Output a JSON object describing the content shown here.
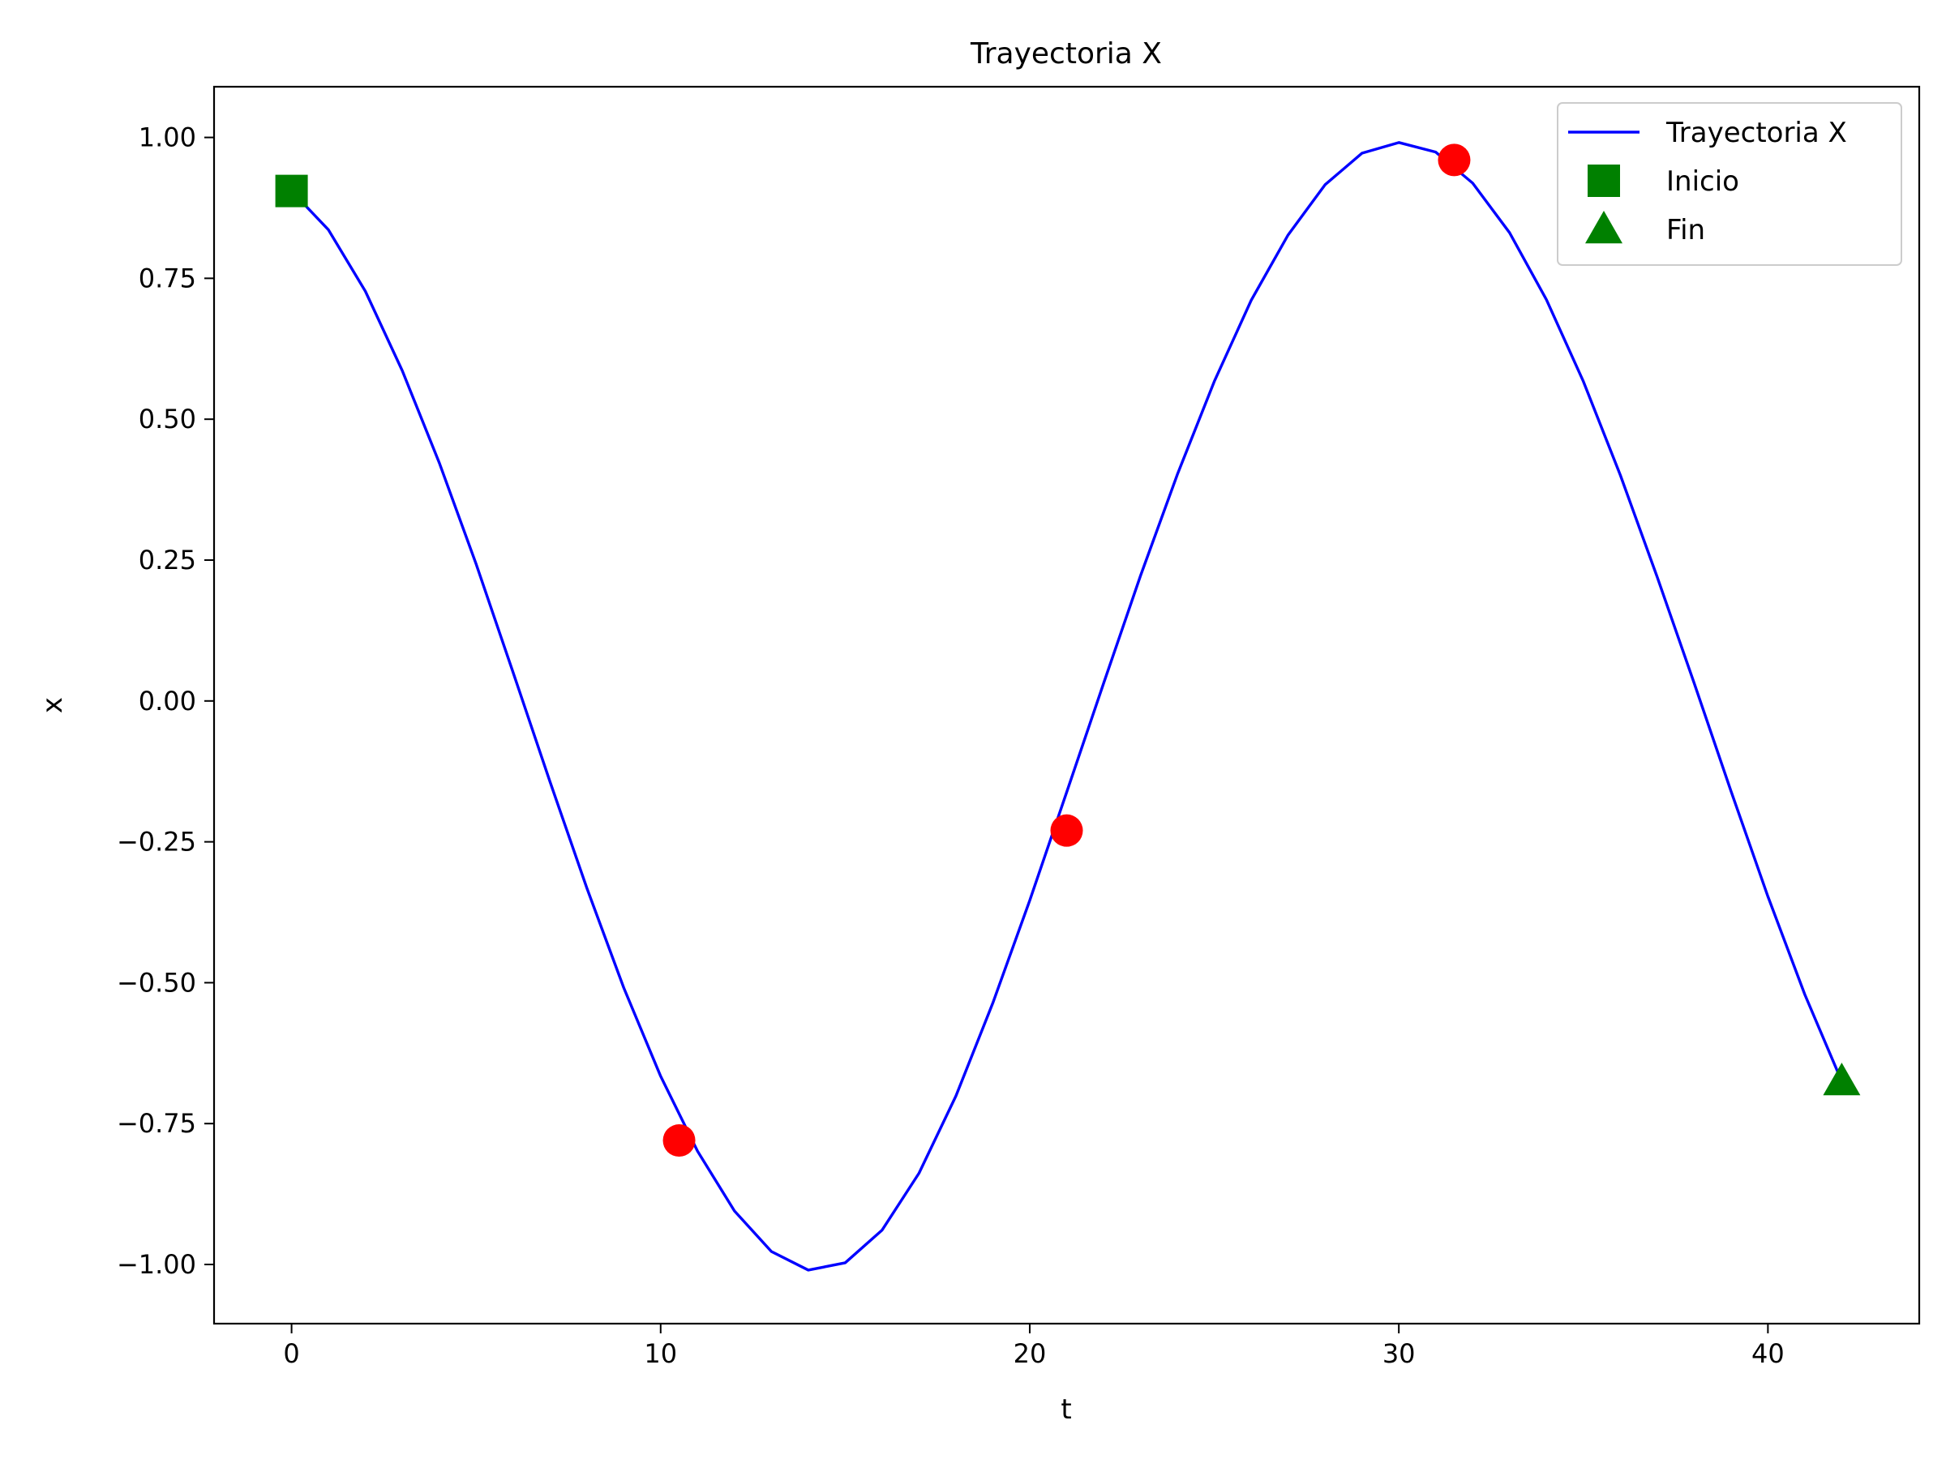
{
  "chart_data": {
    "type": "line",
    "title": "Trayectoria X",
    "xlabel": "t",
    "ylabel": "x",
    "xlim": [
      -2.1,
      44.1
    ],
    "ylim": [
      -1.105,
      1.09
    ],
    "xticks": [
      0,
      10,
      20,
      30,
      40
    ],
    "xtick_labels": [
      "0",
      "10",
      "20",
      "30",
      "40"
    ],
    "yticks": [
      1.0,
      0.75,
      0.5,
      0.25,
      0.0,
      -0.25,
      -0.5,
      -0.75,
      -1.0
    ],
    "ytick_labels": [
      "1.00",
      "0.75",
      "0.50",
      "0.25",
      "0.00",
      "−0.25",
      "−0.50",
      "−0.75",
      "−1.00"
    ],
    "grid": false,
    "legend_position": "top-right",
    "series": [
      {
        "name": "Trayectoria X",
        "kind": "line",
        "color": "#0000ff",
        "x": [
          0,
          1,
          2,
          3,
          4,
          5,
          6,
          7,
          8,
          9,
          10,
          11,
          12,
          13,
          14,
          15,
          16,
          17,
          18,
          19,
          20,
          21,
          22,
          23,
          24,
          25,
          26,
          27,
          28,
          29,
          30,
          31,
          32,
          33,
          34,
          35,
          36,
          37,
          38,
          39,
          40,
          41,
          42
        ],
        "y": [
          0.905,
          0.836,
          0.727,
          0.586,
          0.423,
          0.243,
          0.051,
          -0.143,
          -0.332,
          -0.509,
          -0.666,
          -0.799,
          -0.905,
          -0.977,
          -1.01,
          -0.997,
          -0.939,
          -0.838,
          -0.701,
          -0.536,
          -0.354,
          -0.162,
          0.031,
          0.222,
          0.402,
          0.567,
          0.711,
          0.827,
          0.916,
          0.972,
          0.991,
          0.974,
          0.919,
          0.831,
          0.712,
          0.567,
          0.401,
          0.22,
          0.032,
          -0.16,
          -0.347,
          -0.521,
          -0.675
        ]
      },
      {
        "name": "",
        "kind": "points",
        "marker": "circle",
        "color": "#ff0000",
        "x": [
          10.5,
          21,
          31.5
        ],
        "y": [
          -0.78,
          -0.23,
          0.96
        ]
      },
      {
        "name": "Inicio",
        "kind": "points",
        "marker": "square",
        "color": "#008000",
        "x": [
          0
        ],
        "y": [
          0.905
        ]
      },
      {
        "name": "Fin",
        "kind": "points",
        "marker": "triangle",
        "color": "#008000",
        "x": [
          42
        ],
        "y": [
          -0.675
        ]
      }
    ]
  }
}
